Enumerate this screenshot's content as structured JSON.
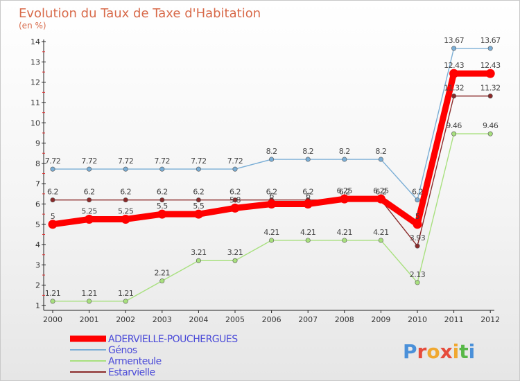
{
  "chart_data": {
    "type": "line",
    "title": "Evolution du Taux de Taxe d'Habitation",
    "subtitle": "(en %)",
    "x": [
      "2000",
      "2001",
      "2002",
      "2003",
      "2004",
      "2005",
      "2006",
      "2007",
      "2008",
      "2009",
      "2010",
      "2011",
      "2012"
    ],
    "ylim": [
      1,
      14
    ],
    "yticks": [
      1,
      2,
      3,
      4,
      5,
      6,
      7,
      8,
      9,
      10,
      11,
      12,
      13,
      14
    ],
    "grid": false,
    "legend_position": "bottom-left",
    "series": [
      {
        "name": "ADERVIELLE-POUCHERGUES",
        "color": "#ff0000",
        "values": [
          5,
          5.25,
          5.25,
          5.5,
          5.5,
          5.8,
          6,
          6,
          6.25,
          6.25,
          5,
          12.43,
          12.43
        ],
        "labels": [
          "5",
          "5.25",
          "5.25",
          "5.5",
          "5.5",
          "5.8",
          "6",
          "6",
          "6.25",
          "6.25",
          "5",
          "12.43",
          "12.43"
        ]
      },
      {
        "name": "Génos",
        "color": "#7aaed6",
        "values": [
          7.72,
          7.72,
          7.72,
          7.72,
          7.72,
          7.72,
          8.2,
          8.2,
          8.2,
          8.2,
          6.2,
          13.67,
          13.67
        ],
        "labels": [
          "7.72",
          "7.72",
          "7.72",
          "7.72",
          "7.72",
          "7.72",
          "8.2",
          "8.2",
          "8.2",
          "8.2",
          "6.2",
          "13.67",
          "13.67"
        ]
      },
      {
        "name": "Armenteule",
        "color": "#a8e07e",
        "values": [
          1.21,
          1.21,
          1.21,
          2.21,
          3.21,
          3.21,
          4.21,
          4.21,
          4.21,
          4.21,
          2.13,
          9.46,
          9.46
        ],
        "labels": [
          "1.21",
          "1.21",
          "1.21",
          "2.21",
          "3.21",
          "3.21",
          "4.21",
          "4.21",
          "4.21",
          "4.21",
          "2.13",
          "9.46",
          "9.46"
        ]
      },
      {
        "name": "Estarvielle",
        "color": "#8a2a2a",
        "values": [
          6.2,
          6.2,
          6.2,
          6.2,
          6.2,
          6.2,
          6.2,
          6.2,
          6.2,
          6.2,
          3.93,
          11.32,
          11.32
        ],
        "labels": [
          "6.2",
          "6.2",
          "6.2",
          "6.2",
          "6.2",
          "6.2",
          "6.2",
          "6.2",
          "6.2",
          "6.2",
          "3.93",
          "11.32",
          "11.32"
        ]
      }
    ]
  },
  "logo": {
    "text": "Proxiti",
    "colors": [
      "#4a90d9",
      "#e64c3c",
      "#f0a830",
      "#e64c3c",
      "#f0a830",
      "#58b848",
      "#4a90d9"
    ]
  }
}
